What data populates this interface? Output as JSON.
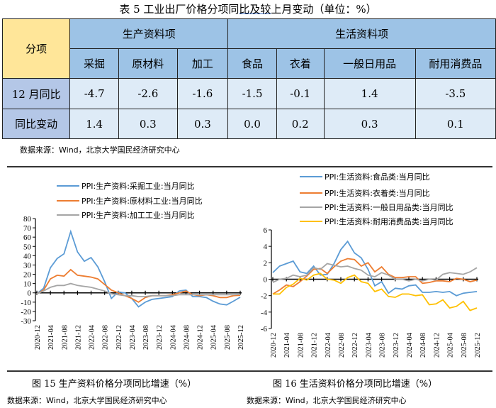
{
  "table": {
    "title_pre": "表 5  工业出厂价格分项同",
    "title_ul": "比及较",
    "title_post": "上月变动（单位：%）",
    "corner": "分项",
    "group1": "生产资料项",
    "group2": "生活资料项",
    "columns": [
      "采掘",
      "原材料",
      "加工",
      "食品",
      "衣着",
      "一般日用品",
      "耐用消费品"
    ],
    "rows": [
      {
        "label": "12 月同比",
        "values": [
          "-4.7",
          "-2.6",
          "-1.6",
          "-1.5",
          "-0.1",
          "1.4",
          "-3.5"
        ]
      },
      {
        "label": "同比变动",
        "values": [
          "1.4",
          "0.3",
          "0.3",
          "0.0",
          "0.2",
          "0.3",
          "0.1"
        ]
      }
    ],
    "source": "数据来源：Wind，北京大学国民经济研究中心"
  },
  "colors": {
    "blue": "#5B9BD5",
    "orange": "#ED7D31",
    "gray": "#A5A5A5",
    "yellow": "#FFC000"
  },
  "chart_data": [
    {
      "type": "line",
      "caption": "图 15  生产资料价格分项同比增速（%）",
      "source": "数据来源：Wind，北京大学国民经济研究中心",
      "ylim": [
        -30,
        80
      ],
      "yticks": [
        80,
        70,
        60,
        50,
        40,
        30,
        20,
        10,
        0,
        -10,
        -20,
        -30
      ],
      "xticks": [
        "2020-12",
        "2021-04",
        "2021-08",
        "2021-12",
        "2022-04",
        "2022-08",
        "2022-12",
        "2023-04",
        "2023-08",
        "2023-12",
        "2024-04",
        "2024-08",
        "2024-12",
        "2025-04",
        "2025-08",
        "2025-12"
      ],
      "x": [
        "2020-12",
        "2021-02",
        "2021-04",
        "2021-06",
        "2021-08",
        "2021-10",
        "2021-12",
        "2022-02",
        "2022-04",
        "2022-06",
        "2022-08",
        "2022-10",
        "2022-12",
        "2023-02",
        "2023-04",
        "2023-06",
        "2023-08",
        "2023-10",
        "2023-12",
        "2024-02",
        "2024-04",
        "2024-06",
        "2024-08",
        "2024-10",
        "2024-12",
        "2025-02",
        "2025-04",
        "2025-06",
        "2025-08",
        "2025-10",
        "2025-12"
      ],
      "legend": "top",
      "series": [
        {
          "name": "PPI:生产资料:采掘工业:当月同比",
          "color": "#5B9BD5",
          "values": [
            -1,
            5,
            27,
            37,
            42,
            66,
            44,
            34,
            38,
            28,
            12,
            -6,
            1,
            0,
            -6,
            -15,
            -10,
            -7,
            -6,
            -5,
            -4,
            2,
            3,
            -4,
            -4,
            -5,
            -9,
            -12,
            -13,
            -9,
            -4.7
          ]
        },
        {
          "name": "PPI:生产资料:原材料工业:当月同比",
          "color": "#ED7D31",
          "values": [
            -1,
            3,
            15,
            19,
            18,
            25,
            19,
            18,
            17,
            15,
            9,
            3,
            0,
            -3,
            -6,
            -10,
            -5,
            -3,
            -3,
            -3,
            -2,
            0,
            2,
            -2,
            -3,
            -2,
            -3,
            -5,
            -5,
            -3,
            -2.6
          ]
        },
        {
          "name": "PPI:生产资料:加工工业:当月同比",
          "color": "#A5A5A5",
          "values": [
            -1,
            2,
            6,
            8,
            8,
            10,
            8,
            7,
            6,
            4,
            2,
            -1,
            -2,
            -3,
            -3,
            -4,
            -4,
            -3,
            -3,
            -3,
            -3,
            -2,
            -2,
            -2,
            -2,
            -2,
            -2,
            -2,
            -2,
            -2,
            -1.6
          ]
        }
      ]
    },
    {
      "type": "line",
      "caption": "图 16  生活资料价格分项同比增速（%）",
      "source": "数据来源：Wind，北京大学国民经济研究中心",
      "ylim": [
        -6,
        6
      ],
      "yticks": [
        6,
        4,
        2,
        0,
        -2,
        -4,
        -6
      ],
      "xticks": [
        "2020-12",
        "2021-04",
        "2021-08",
        "2021-12",
        "2022-04",
        "2022-08",
        "2022-12",
        "2023-04",
        "2023-08",
        "2023-12",
        "2024-04",
        "2024-08",
        "2024-12",
        "2025-04",
        "2025-08",
        "2025-12"
      ],
      "x": [
        "2020-12",
        "2021-02",
        "2021-04",
        "2021-06",
        "2021-08",
        "2021-10",
        "2021-12",
        "2022-02",
        "2022-04",
        "2022-06",
        "2022-08",
        "2022-10",
        "2022-12",
        "2023-02",
        "2023-04",
        "2023-06",
        "2023-08",
        "2023-10",
        "2023-12",
        "2024-02",
        "2024-04",
        "2024-06",
        "2024-08",
        "2024-10",
        "2024-12",
        "2025-02",
        "2025-04",
        "2025-06",
        "2025-08",
        "2025-10",
        "2025-12"
      ],
      "legend": "top",
      "series": [
        {
          "name": "PPI:生活资料:食品类:当月同比",
          "color": "#5B9BD5",
          "values": [
            0.8,
            1.6,
            1.9,
            2.2,
            0.9,
            0.7,
            1.6,
            0.5,
            0.6,
            1.9,
            3.6,
            4.6,
            3.2,
            2.6,
            1.2,
            -0.8,
            -0.3,
            -1.7,
            -1.1,
            -1.2,
            -0.8,
            -0.7,
            -1.6,
            -1.6,
            -1.5,
            -1.6,
            -1.5,
            -2.0,
            -1.7,
            -1.6,
            -1.5
          ]
        },
        {
          "name": "PPI:生活资料:衣着类:当月同比",
          "color": "#ED7D31",
          "values": [
            -1.8,
            -1.3,
            -0.7,
            -0.9,
            -0.3,
            0.4,
            1.2,
            1.3,
            0.7,
            1.5,
            2.2,
            2.5,
            2.4,
            1.6,
            2.0,
            0.9,
            1.5,
            0.6,
            0.2,
            0.2,
            0.3,
            0.3,
            -0.5,
            -0.4,
            -0.2,
            -0.2,
            -0.3,
            0.1,
            0,
            -0.3,
            -0.1
          ]
        },
        {
          "name": "PPI:生活资料:一般日用品类:当月同比",
          "color": "#A5A5A5",
          "values": [
            -0.4,
            0,
            0.1,
            0.5,
            0.3,
            0.5,
            1.4,
            1.2,
            1.9,
            1.7,
            1.5,
            1.6,
            1.3,
            1.1,
            0.5,
            0.3,
            0.8,
            0.5,
            0,
            0,
            -0.2,
            0,
            -0.2,
            0,
            -0.1,
            0.6,
            0.8,
            0.7,
            0.6,
            0.9,
            1.4
          ]
        },
        {
          "name": "PPI:生活资料:耐用消费品类:当月同比",
          "color": "#FFC000",
          "values": [
            -1.8,
            -1.8,
            -1.0,
            -0.6,
            0.1,
            -0.1,
            0.5,
            0.7,
            0,
            -0.1,
            -0.5,
            0.2,
            0.5,
            -0.3,
            -0.5,
            -1.5,
            -1.2,
            -2.1,
            -2.2,
            -1.8,
            -1.8,
            -2.0,
            -1.9,
            -3.1,
            -3.0,
            -2.5,
            -3.5,
            -3.3,
            -2.7,
            -3.8,
            -3.5
          ]
        }
      ]
    }
  ]
}
